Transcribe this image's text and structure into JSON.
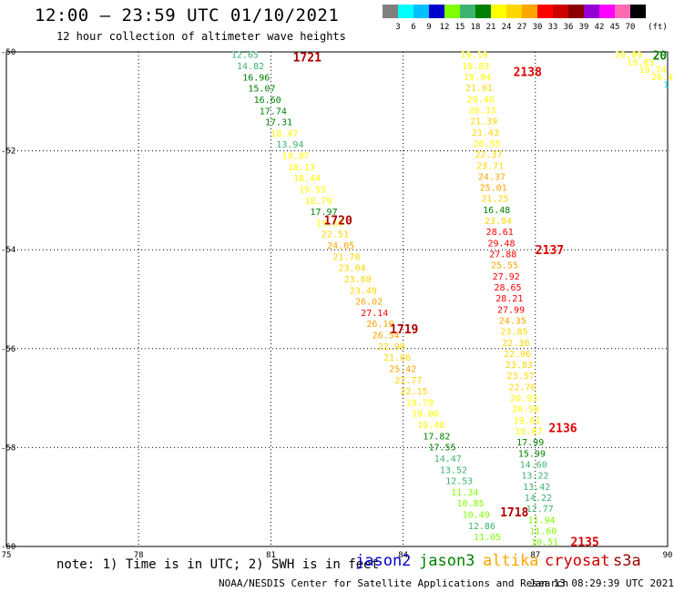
{
  "header": {
    "title": "12:00 – 23:59 UTC 01/10/2021",
    "subtitle": "12 hour collection of altimeter wave heights"
  },
  "color_scale": {
    "unit": "(ft)",
    "colors": [
      "#808080",
      "#00ffff",
      "#00bfff",
      "#0000cd",
      "#7fff00",
      "#3cb371",
      "#008000",
      "#ffff00",
      "#ffd700",
      "#ffa500",
      "#ff0000",
      "#cd0000",
      "#8b0000",
      "#9400d3",
      "#ff00ff",
      "#ff69b4",
      "#000000"
    ],
    "labels": [
      "3",
      "6",
      "9",
      "12",
      "15",
      "18",
      "21",
      "24",
      "27",
      "30",
      "33",
      "36",
      "39",
      "42",
      "45",
      "70"
    ]
  },
  "axes": {
    "x_ticks": [
      "75",
      "78",
      "81",
      "84",
      "87",
      "90"
    ],
    "y_ticks": [
      "-50",
      "-52",
      "-54",
      "-56",
      "-58",
      "-60"
    ]
  },
  "map": {
    "xlim": [
      75,
      90
    ],
    "ylim": [
      -60,
      -50
    ],
    "passes": [
      {
        "mission": "cryosat",
        "label": "1721",
        "color": "#b00000",
        "lon": 81.5,
        "lat": -50.1
      },
      {
        "mission": "cryosat",
        "label": "1720",
        "color": "#b00000",
        "lon": 82.2,
        "lat": -53.4
      },
      {
        "mission": "cryosat",
        "label": "1719",
        "color": "#b00000",
        "lon": 83.7,
        "lat": -55.6
      },
      {
        "mission": "cryosat",
        "label": "1718",
        "color": "#b00000",
        "lon": 86.2,
        "lat": -59.3
      },
      {
        "mission": "s3a",
        "label": "2138",
        "color": "#e00000",
        "lon": 86.5,
        "lat": -50.4
      },
      {
        "mission": "s3a",
        "label": "2137",
        "color": "#e00000",
        "lon": 87.0,
        "lat": -54.0
      },
      {
        "mission": "s3a",
        "label": "2136",
        "color": "#e00000",
        "lon": 87.3,
        "lat": -57.6
      },
      {
        "mission": "s3a",
        "label": "2135",
        "color": "#e00000",
        "lon": 87.8,
        "lat": -59.9
      }
    ]
  },
  "tracks": [
    {
      "name": "cryosat-pass-1718-1721",
      "lon_start": 80.1,
      "lat_start": -50.05,
      "lon_end": 85.6,
      "lat_end": -59.8,
      "values": [
        "12.65",
        "14.82",
        "16.96",
        "15.07",
        "16.60",
        "17.74",
        "17.31",
        "18.47",
        "13.94",
        "19.87",
        "18.13",
        "18.44",
        "19.55",
        "18.79",
        "17.97",
        "19.59",
        "22.51",
        "24.05",
        "21.78",
        "23.04",
        "23.60",
        "23.49",
        "26.02",
        "27.14",
        "26.10",
        "26.54",
        "22.99",
        "21.66",
        "25.42",
        "22.77",
        "22.15",
        "19.79",
        "19.06",
        "19.48",
        "17.82",
        "17.55",
        "14.47",
        "13.52",
        "12.53",
        "11.34",
        "10.85",
        "10.49",
        "12.86",
        "11.05"
      ]
    },
    {
      "name": "s3a-pass-2135-2138",
      "lon_start": 85.3,
      "lat_start": -50.05,
      "lon_end": 86.9,
      "lat_end": -59.9,
      "values": [
        "19.19",
        "19.83",
        "19.94",
        "21.01",
        "20.46",
        "20.33",
        "21.39",
        "21.43",
        "20.55",
        "22.37",
        "23.71",
        "24.37",
        "25.01",
        "21.25",
        "16.48",
        "23.94",
        "28.61",
        "29.48",
        "27.88",
        "25.55",
        "27.92",
        "28.65",
        "28.21",
        "27.99",
        "24.35",
        "23.85",
        "22.30",
        "22.06",
        "23.83",
        "23.57",
        "22.76",
        "20.93",
        "20.58",
        "19.61",
        "19.07",
        "17.99",
        "15.99",
        "14.60",
        "13.22",
        "13.42",
        "14.22",
        "12.77",
        "11.94",
        "11.60",
        "10.51"
      ]
    },
    {
      "name": "jason3-corner-pass",
      "lon_start": 88.8,
      "lat_start": -50.05,
      "lon_end": 89.9,
      "lat_end": -50.65,
      "values": [
        "20.09",
        "19.85",
        "19.74",
        "20.4",
        "1"
      ]
    }
  ],
  "corner_label": {
    "text": "20",
    "lon": 89.95,
    "lat": -50.05
  },
  "legend": {
    "note": "note: 1) Time is in UTC; 2) SWH is in feet",
    "missions": [
      {
        "name": "jason2",
        "color": "#0000cd"
      },
      {
        "name": "jason3",
        "color": "#008000"
      },
      {
        "name": "altika",
        "color": "#ffa500"
      },
      {
        "name": "cryosat",
        "color": "#cc0000"
      },
      {
        "name": "s3a",
        "color": "#990000"
      }
    ]
  },
  "footer": {
    "credit": "NOAA/NESDIS Center for Satellite Applications and Research",
    "timestamp": "Jan 13 08:29:39 UTC 2021"
  }
}
